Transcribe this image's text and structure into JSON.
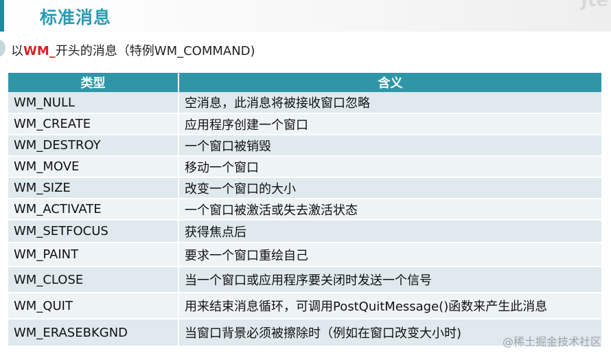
{
  "title": "标准消息",
  "corner_text": "Jte",
  "subtitle": {
    "prefix": "以",
    "accent": "WM_",
    "suffix": "开头的消息（特例WM_COMMAND)"
  },
  "table": {
    "headers": [
      "类型",
      "含义"
    ],
    "rows": [
      {
        "type": "WM_NULL",
        "meaning": "空消息，此消息将被接收窗口忽略"
      },
      {
        "type": "WM_CREATE",
        "meaning": "应用程序创建一个窗口"
      },
      {
        "type": "WM_DESTROY",
        "meaning": "一个窗口被销毁"
      },
      {
        "type": "WM_MOVE",
        "meaning": "移动一个窗口"
      },
      {
        "type": "WM_SIZE",
        "meaning": "改变一个窗口的大小"
      },
      {
        "type": "WM_ACTIVATE",
        "meaning": "一个窗口被激活或失去激活状态"
      },
      {
        "type": "WM_SETFOCUS",
        "meaning": "获得焦点后"
      },
      {
        "type": "WM_PAINT",
        "meaning": "要求一个窗口重绘自己"
      },
      {
        "type": "WM_CLOSE",
        "meaning": "当一个窗口或应用程序要关闭时发送一个信号"
      },
      {
        "type": "WM_QUIT",
        "meaning": "用来结束消息循环，可调用PostQuitMessage()函数来产生此消息"
      },
      {
        "type": "WM_ERASEBKGND",
        "meaning": "当窗口背景必须被擦除时（例如在窗口改变大小时)"
      }
    ]
  },
  "watermark": "@稀土掘金技术社区"
}
